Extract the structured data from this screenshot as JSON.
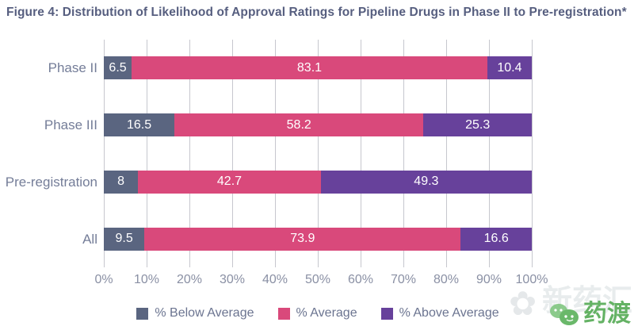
{
  "title": "Figure 4: Distribution of Likelihood of Approval Ratings for Pipeline Drugs in Phase II to Pre-registration*",
  "chart_data": {
    "type": "bar",
    "subtype": "horizontal-stacked",
    "categories": [
      "Phase II",
      "Phase III",
      "Pre-registration",
      "All"
    ],
    "series": [
      {
        "name": "% Below Average",
        "color": "#5a6580",
        "values": [
          6.5,
          16.5,
          8,
          9.5
        ]
      },
      {
        "name": "% Average",
        "color": "#d9497b",
        "values": [
          83.1,
          58.2,
          42.7,
          73.9
        ]
      },
      {
        "name": "% Above Average",
        "color": "#67419b",
        "values": [
          10.4,
          25.3,
          49.3,
          16.6
        ]
      }
    ],
    "x_ticks": [
      "0%",
      "10%",
      "20%",
      "30%",
      "40%",
      "50%",
      "60%",
      "70%",
      "80%",
      "90%",
      "100%"
    ],
    "xlim": [
      0,
      100
    ],
    "grid": true,
    "gridline_color": "#c6c7ce",
    "value_label_color": "#ffffff",
    "legend_position": "bottom"
  },
  "watermark": {
    "bg_text": "新药汇",
    "brand_text": "药渡",
    "brand_color": "#64b264"
  }
}
